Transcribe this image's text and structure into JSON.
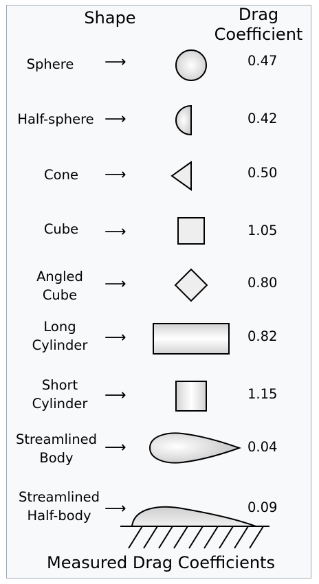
{
  "headers": {
    "shape": "Shape",
    "drag_line1": "Drag",
    "drag_line2": "Coefficient"
  },
  "rows": [
    {
      "label": [
        "Sphere"
      ],
      "value": "0.47",
      "shape": "sphere"
    },
    {
      "label": [
        "Half-sphere"
      ],
      "value": "0.42",
      "shape": "half-sphere"
    },
    {
      "label": [
        "Cone"
      ],
      "value": "0.50",
      "shape": "cone"
    },
    {
      "label": [
        "Cube"
      ],
      "value": "1.05",
      "shape": "cube"
    },
    {
      "label": [
        "Angled",
        "Cube"
      ],
      "value": "0.80",
      "shape": "angled-cube"
    },
    {
      "label": [
        "Long",
        "Cylinder"
      ],
      "value": "0.82",
      "shape": "long-cylinder"
    },
    {
      "label": [
        "Short",
        "Cylinder"
      ],
      "value": "1.15",
      "shape": "short-cylinder"
    },
    {
      "label": [
        "Streamlined",
        "Body"
      ],
      "value": "0.04",
      "shape": "streamlined-body"
    },
    {
      "label": [
        "Streamlined",
        "Half-body"
      ],
      "value": "0.09",
      "shape": "streamlined-half-body"
    }
  ],
  "arrow_glyph": "⟶",
  "footer": "Measured Drag Coefficients",
  "colors": {
    "shape_fill_light": "#ffffff",
    "shape_fill_dark": "#cfcfcf",
    "shape_stroke": "#000000",
    "panel_background": "#f8f9fb",
    "panel_border": "#a2a9b1"
  }
}
